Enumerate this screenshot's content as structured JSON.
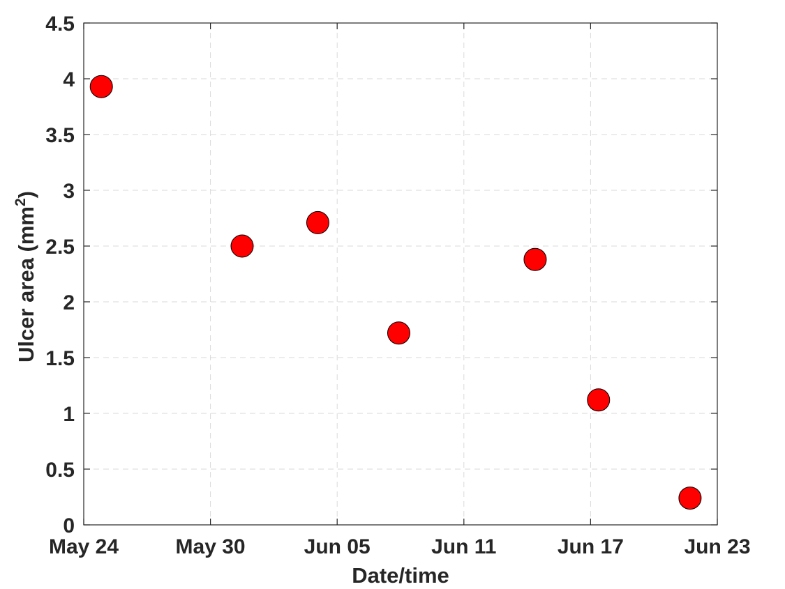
{
  "chart_data": {
    "type": "scatter",
    "title": "",
    "xlabel": "Date/time",
    "ylabel": {
      "text": "Ulcer area (mm",
      "superscript": "2",
      "suffix": ")"
    },
    "x_is_date": true,
    "xlim": [
      "2024-05-24",
      "2024-06-23"
    ],
    "x_ticks": [
      {
        "date": "2024-05-24",
        "label": "May 24"
      },
      {
        "date": "2024-05-30",
        "label": "May 30"
      },
      {
        "date": "2024-06-05",
        "label": "Jun 05"
      },
      {
        "date": "2024-06-11",
        "label": "Jun 11"
      },
      {
        "date": "2024-06-17",
        "label": "Jun 17"
      },
      {
        "date": "2024-06-23",
        "label": "Jun 23"
      }
    ],
    "ylim": [
      0,
      4.5
    ],
    "y_ticks": [
      {
        "value": 0,
        "label": "0"
      },
      {
        "value": 0.5,
        "label": "0.5"
      },
      {
        "value": 1,
        "label": "1"
      },
      {
        "value": 1.5,
        "label": "1.5"
      },
      {
        "value": 2,
        "label": "2"
      },
      {
        "value": 2.5,
        "label": "2.5"
      },
      {
        "value": 3,
        "label": "3"
      },
      {
        "value": 3.5,
        "label": "3.5"
      },
      {
        "value": 4,
        "label": "4"
      },
      {
        "value": 4.5,
        "label": "4.5"
      }
    ],
    "grid": true,
    "series": [
      {
        "color": "#ff0000",
        "edge_color": "#000000",
        "points": [
          {
            "x": "2024-05-24 20:00",
            "y": 3.93
          },
          {
            "x": "2024-05-31 12:00",
            "y": 2.5
          },
          {
            "x": "2024-06-04 02:00",
            "y": 2.71
          },
          {
            "x": "2024-06-07 22:00",
            "y": 1.72
          },
          {
            "x": "2024-06-14 09:00",
            "y": 2.38
          },
          {
            "x": "2024-06-17 09:00",
            "y": 1.12
          },
          {
            "x": "2024-06-21 17:00",
            "y": 0.24
          }
        ]
      }
    ]
  }
}
